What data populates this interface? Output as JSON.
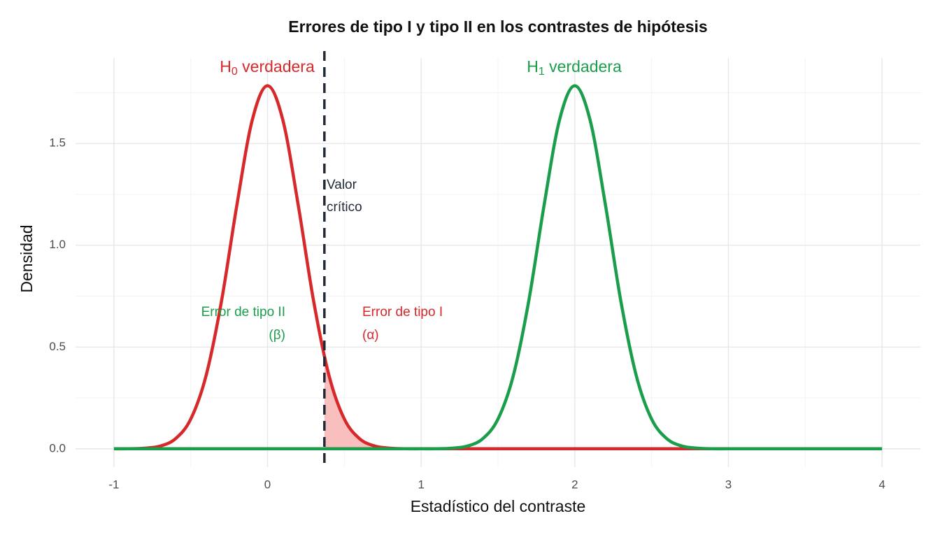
{
  "chart_data": {
    "type": "line",
    "title": "Errores de tipo I y tipo II en los contrastes de hipótesis",
    "x_label": "Estadístico del contraste",
    "y_label": "Densidad",
    "x": [
      -1.0,
      -0.9,
      -0.8,
      -0.7,
      -0.6,
      -0.5,
      -0.4,
      -0.3,
      -0.2,
      -0.1,
      0.0,
      0.1,
      0.2,
      0.3,
      0.4,
      0.5,
      0.6,
      0.7,
      0.8,
      0.9,
      1.0,
      1.1,
      1.2,
      1.3,
      1.4,
      1.5,
      1.6,
      1.7,
      1.8,
      1.9,
      2.0,
      2.1,
      2.2,
      2.3,
      2.4,
      2.5,
      2.6,
      2.7,
      2.8,
      2.9,
      3.0,
      3.1,
      3.2,
      3.3,
      3.4,
      3.5,
      3.6,
      3.7,
      3.8,
      3.9,
      4.0
    ],
    "series": [
      {
        "name": "H0",
        "color": "#d7282a",
        "values": [
          0,
          0,
          0.003,
          0.013,
          0.049,
          0.146,
          0.36,
          0.725,
          1.196,
          1.614,
          1.784,
          1.614,
          1.196,
          0.725,
          0.36,
          0.146,
          0.049,
          0.013,
          0.003,
          0,
          0,
          0,
          0,
          0,
          0,
          0,
          0,
          0,
          0,
          0,
          0,
          0,
          0,
          0,
          0,
          0,
          0,
          0,
          0,
          0,
          0,
          0,
          0,
          0,
          0,
          0,
          0,
          0,
          0,
          0,
          0
        ]
      },
      {
        "name": "H1",
        "color": "#1b9e4b",
        "values": [
          0,
          0,
          0,
          0,
          0,
          0,
          0,
          0,
          0,
          0,
          0,
          0,
          0,
          0,
          0,
          0,
          0,
          0,
          0,
          0,
          0,
          0,
          0.003,
          0.013,
          0.049,
          0.146,
          0.36,
          0.725,
          1.196,
          1.614,
          1.784,
          1.614,
          1.196,
          0.725,
          0.36,
          0.146,
          0.049,
          0.013,
          0.003,
          0,
          0,
          0,
          0,
          0,
          0,
          0,
          0,
          0,
          0,
          0,
          0
        ]
      }
    ],
    "critical_value": 0.37,
    "alpha_fill": "#f9bfbf",
    "annotations": {
      "h0": {
        "base": "H",
        "sub": "0",
        "rest": " verdadera"
      },
      "h1": {
        "base": "H",
        "sub": "1",
        "rest": " verdadera"
      },
      "critical": [
        "Valor",
        "crítico"
      ],
      "type2": [
        "Error de tipo II",
        "(β)"
      ],
      "type1": [
        "Error de tipo I",
        "(α)"
      ]
    },
    "xlim": [
      -1.25,
      4.25
    ],
    "ylim": [
      -0.09,
      1.92
    ],
    "xticks": [
      -1,
      0,
      1,
      2,
      3,
      4
    ],
    "yticks": [
      {
        "value": 0,
        "label": "0.0"
      },
      {
        "value": 0.5,
        "label": "0.5"
      },
      {
        "value": 1,
        "label": "1.0"
      },
      {
        "value": 1.5,
        "label": "1.5"
      }
    ],
    "grid": true
  }
}
